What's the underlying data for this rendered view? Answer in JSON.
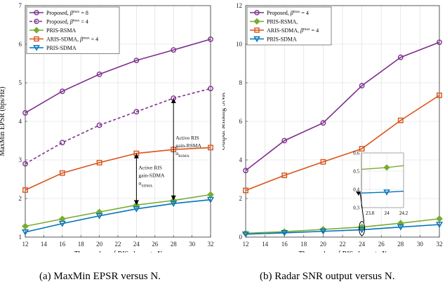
{
  "colors": {
    "purple": "#7e2f8e",
    "green": "#77ac30",
    "orange": "#d95319",
    "blue": "#0072bd"
  },
  "captions": {
    "a": "(a) MaxMin EPSR versus N.",
    "b": "(b) Radar SNR output versus N."
  },
  "chart_data": [
    {
      "type": "line",
      "xlabel": "The number of RIS elemnets N",
      "ylabel": "MaxMin EPSR (bps/Hz)",
      "xlim": [
        12,
        32
      ],
      "ylim": [
        1,
        7
      ],
      "xticks": [
        "12",
        "14",
        "16",
        "18",
        "20",
        "22",
        "24",
        "26",
        "28",
        "30",
        "32"
      ],
      "yticks": [
        "1",
        "2",
        "3",
        "4",
        "5",
        "6",
        "7"
      ],
      "grid": true,
      "legend": "top-left",
      "x": [
        12,
        16,
        20,
        24,
        28,
        32
      ],
      "series": [
        {
          "name": "Proposed, β^max = 8",
          "color": "#7e2f8e",
          "marker": "circle",
          "dash": false,
          "values": [
            4.22,
            4.78,
            5.22,
            5.58,
            5.85,
            6.13
          ]
        },
        {
          "name": "Proposed, β^max = 4",
          "color": "#7e2f8e",
          "marker": "circle",
          "dash": true,
          "values": [
            2.9,
            3.45,
            3.9,
            4.25,
            4.6,
            4.85
          ]
        },
        {
          "name": "PRIS-RSMA",
          "color": "#77ac30",
          "marker": "diamond",
          "dash": false,
          "values": [
            1.28,
            1.47,
            1.65,
            1.83,
            1.95,
            2.1
          ]
        },
        {
          "name": "ARIS-SDMA, β^max = 4",
          "color": "#d95319",
          "marker": "square",
          "dash": false,
          "values": [
            2.22,
            2.66,
            2.93,
            3.17,
            3.27,
            3.32
          ]
        },
        {
          "name": "PRIS-SDMA",
          "color": "#0072bd",
          "marker": "triangle-down",
          "dash": false,
          "values": [
            1.13,
            1.35,
            1.55,
            1.73,
            1.87,
            1.97
          ]
        }
      ],
      "annotations": [
        {
          "lines": [
            "Active RIS",
            "gain-SDMA",
            "α_SDMA"
          ],
          "x": 24,
          "from": 1.83,
          "to": 3.17
        },
        {
          "lines": [
            "Active RIS",
            "gain-RSMA",
            "α_RSMA"
          ],
          "x": 28,
          "from": 1.95,
          "to": 4.6
        }
      ]
    },
    {
      "type": "line",
      "xlabel": "The number of RIS elemnets N",
      "ylabel": "Output sensing SNR",
      "xlim": [
        12,
        32
      ],
      "ylim": [
        0,
        12
      ],
      "xticks": [
        "12",
        "14",
        "16",
        "18",
        "20",
        "22",
        "24",
        "26",
        "28",
        "30",
        "32"
      ],
      "yticks": [
        "0",
        "2",
        "4",
        "6",
        "8",
        "10",
        "12"
      ],
      "grid": true,
      "legend": "top-left",
      "x": [
        12,
        16,
        20,
        24,
        28,
        32
      ],
      "series": [
        {
          "name": "Proposed, β^max = 4",
          "color": "#7e2f8e",
          "marker": "circle",
          "values": [
            3.45,
            5.0,
            5.92,
            7.85,
            9.32,
            10.1
          ]
        },
        {
          "name": "PRIS-RSMA,",
          "color": "#77ac30",
          "marker": "diamond",
          "values": [
            0.2,
            0.28,
            0.4,
            0.52,
            0.72,
            0.95
          ]
        },
        {
          "name": "ARIS-SDMA, β^max = 4",
          "color": "#d95319",
          "marker": "square",
          "values": [
            2.42,
            3.2,
            3.9,
            4.58,
            6.05,
            7.35
          ]
        },
        {
          "name": "PRIS-SDMA",
          "color": "#0072bd",
          "marker": "triangle-down",
          "values": [
            0.15,
            0.22,
            0.3,
            0.38,
            0.52,
            0.65
          ]
        }
      ],
      "inset": {
        "xlim": [
          23.7,
          24.2
        ],
        "ylim": [
          0.3,
          0.6
        ],
        "xticks": [
          "23.8",
          "24",
          "24.2"
        ],
        "yticks": [
          "0.3",
          "0.4",
          "0.5",
          "0.6"
        ],
        "x": [
          23.7,
          24,
          24.2
        ],
        "series": [
          {
            "name": "PRIS-RSMA,",
            "color": "#77ac30",
            "marker": "diamond",
            "values": [
              0.51,
              0.52,
              0.53
            ]
          },
          {
            "name": "PRIS-SDMA",
            "color": "#0072bd",
            "marker": "triangle-down",
            "values": [
              0.38,
              0.385,
              0.39
            ]
          }
        ]
      }
    }
  ]
}
